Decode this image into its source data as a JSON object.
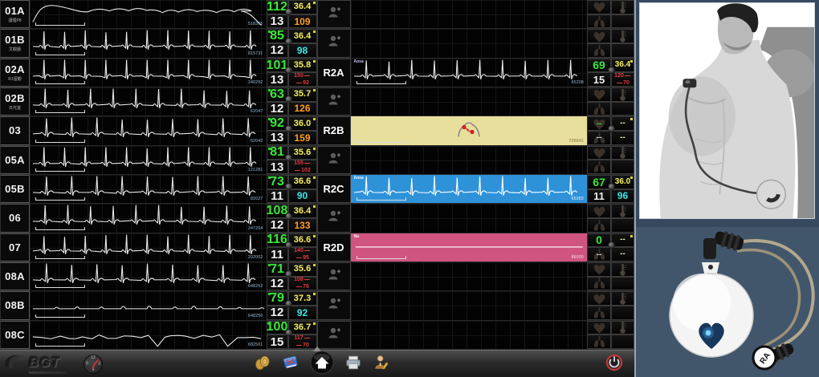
{
  "monitor": {
    "rows": [
      {
        "id": "01A",
        "subtitle": "護理P8",
        "wave": "drift",
        "wave_id": "518365",
        "hr": "112",
        "rr": "13",
        "temp": "36.4",
        "aux": {
          "kind": "orange",
          "value": "109"
        },
        "link": "person"
      },
      {
        "id": "01B",
        "subtitle": "文觀廳",
        "wave": "ecg",
        "wave_id": "815731",
        "hr": "85",
        "rr": "12",
        "temp": "36.4",
        "aux": {
          "kind": "cyan",
          "value": "98"
        },
        "link": "person"
      },
      {
        "id": "02A",
        "subtitle": "R1留觀",
        "wave": "ecg-tall",
        "wave_id": "240292",
        "hr": "101",
        "rr": "13",
        "temp": "35.8",
        "aux": {
          "kind": "bp",
          "sys": "150",
          "dia": "92"
        },
        "link": "R2A"
      },
      {
        "id": "02B",
        "subtitle": "日光室",
        "wave": "ecg",
        "wave_id": "62047",
        "hr": "63",
        "rr": "12",
        "temp": "35.7",
        "aux": {
          "kind": "orange",
          "value": "126"
        },
        "link": "person"
      },
      {
        "id": "03",
        "subtitle": "",
        "wave": "ecg",
        "wave_id": "62042",
        "hr": "92",
        "rr": "13",
        "temp": "36.0",
        "aux": {
          "kind": "orange",
          "value": "159"
        },
        "link": "R2B"
      },
      {
        "id": "05A",
        "subtitle": "",
        "wave": "ecg",
        "wave_id": "121281",
        "hr": "81",
        "rr": "13",
        "temp": "35.6",
        "aux": {
          "kind": "bp",
          "sys": "155",
          "dia": "102"
        },
        "link": "person"
      },
      {
        "id": "05B",
        "subtitle": "",
        "wave": "ecg",
        "wave_id": "82027",
        "hr": "73",
        "rr": "11",
        "temp": "36.6",
        "aux": {
          "kind": "cyan",
          "value": "90"
        },
        "link": "R2C"
      },
      {
        "id": "06",
        "subtitle": "",
        "wave": "ecg",
        "wave_id": "247204",
        "hr": "108",
        "rr": "12",
        "temp": "36.4",
        "aux": {
          "kind": "orange",
          "value": "133"
        },
        "link": "person"
      },
      {
        "id": "07",
        "subtitle": "",
        "wave": "ecg-big",
        "wave_id": "202002",
        "hr": "116",
        "rr": "11",
        "temp": "36.6",
        "aux": {
          "kind": "bp",
          "sys": "140",
          "dia": "95"
        },
        "link": "R2D"
      },
      {
        "id": "08A",
        "subtitle": "",
        "wave": "ecg",
        "wave_id": "648252",
        "hr": "71",
        "rr": "12",
        "temp": "35.6",
        "aux": {
          "kind": "bp",
          "sys": "108",
          "dia": "76"
        },
        "link": "person"
      },
      {
        "id": "08B",
        "subtitle": "",
        "wave": "flatlow",
        "wave_id": "648250",
        "hr": "79",
        "rr": "12",
        "temp": "37.3",
        "aux": {
          "kind": "cyan",
          "value": "92"
        },
        "link": "person"
      },
      {
        "id": "08C",
        "subtitle": "",
        "wave": "noisy",
        "wave_id": "682501",
        "hr": "100",
        "rr": "15",
        "temp": "36.7",
        "aux": {
          "kind": "bp",
          "sys": "117",
          "dia": "70"
        },
        "link": "person"
      }
    ],
    "remotes": {
      "R2A": {
        "style": "dark",
        "wave": "ecg",
        "wave_label": "Aosa",
        "wave_id": "65208",
        "hr": "69",
        "rr": "15",
        "temp": "36.4",
        "aux": {
          "kind": "bp",
          "sys": "120",
          "dia": "70"
        }
      },
      "R2B": {
        "style": "yellow",
        "wave": "banner",
        "wave_label": "",
        "wave_id": "709641",
        "hr": "--",
        "rr": "--",
        "temp": "--",
        "aux": {
          "kind": "dashes"
        }
      },
      "R2C": {
        "style": "blue",
        "wave": "ecg",
        "wave_label": "Aosa",
        "wave_id": "65083",
        "hr": "67",
        "rr": "11",
        "temp": "36.0",
        "aux": {
          "kind": "cyan",
          "value": "96"
        }
      },
      "R2D": {
        "style": "pink",
        "wave": "flat",
        "wave_label": "Na",
        "wave_id": "86000",
        "hr": "0",
        "rr": "--",
        "temp": "--",
        "aux": {
          "kind": "dashes"
        }
      }
    }
  },
  "toolbar": {
    "brand": "BGT",
    "clock": {
      "numerals": [
        "12",
        "3",
        "6",
        "9"
      ]
    },
    "buttons": [
      {
        "name": "coins-button",
        "icon": "coins"
      },
      {
        "name": "log-book-button",
        "icon": "book"
      },
      {
        "name": "home-button",
        "icon": "home"
      },
      {
        "name": "print-button",
        "icon": "printer"
      },
      {
        "name": "user-settings-button",
        "icon": "user"
      }
    ]
  },
  "photos": {
    "device": {
      "connector_label": "RA"
    }
  },
  "colors": {
    "hr_green": "#39e639",
    "temp_yellow": "#f5ef60",
    "spo2_cyan": "#3ae8e8",
    "alarm_orange": "#ff9d20",
    "alarm_red": "#e23a3a",
    "banner_yellow": "#e8df9d",
    "banner_blue": "#2e92d9",
    "banner_pink": "#d05480",
    "photo_background": "#42566b"
  }
}
